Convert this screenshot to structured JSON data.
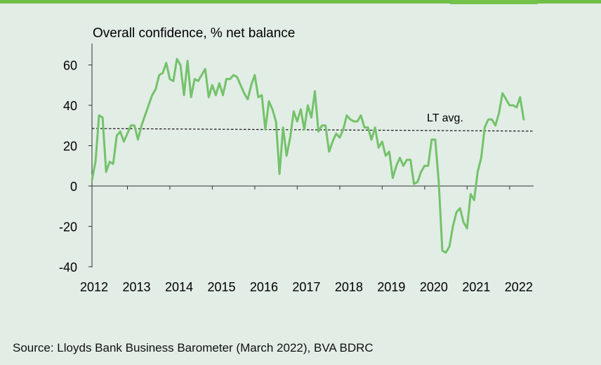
{
  "colors": {
    "background": "#e2ede6",
    "line": "#74c26a",
    "axis": "#333333",
    "lt_avg_line": "#111111",
    "top_rule": "#6fbf46"
  },
  "chart_data": {
    "type": "line",
    "title": "Overall confidence, % net balance",
    "xlabel": "",
    "ylabel": "",
    "ylim": [
      -40,
      70
    ],
    "yticks": [
      60,
      40,
      20,
      0,
      -20,
      -40
    ],
    "xlim": [
      2012.0,
      2022.4
    ],
    "xtick_labels": [
      "2012",
      "2013",
      "2014",
      "2015",
      "2016",
      "2017",
      "2018",
      "2019",
      "2020",
      "2021",
      "2022"
    ],
    "grid": false,
    "legend": "none",
    "series": [
      {
        "name": "Overall confidence",
        "x": [
          2012.0,
          2012.083,
          2012.167,
          2012.25,
          2012.333,
          2012.417,
          2012.5,
          2012.583,
          2012.667,
          2012.75,
          2012.833,
          2012.917,
          2013.0,
          2013.083,
          2013.167,
          2013.25,
          2013.333,
          2013.417,
          2013.5,
          2013.583,
          2013.667,
          2013.75,
          2013.833,
          2013.917,
          2014.0,
          2014.083,
          2014.167,
          2014.25,
          2014.333,
          2014.417,
          2014.5,
          2014.583,
          2014.667,
          2014.75,
          2014.833,
          2014.917,
          2015.0,
          2015.083,
          2015.167,
          2015.25,
          2015.333,
          2015.417,
          2015.5,
          2015.583,
          2015.667,
          2015.75,
          2015.833,
          2015.917,
          2016.0,
          2016.083,
          2016.167,
          2016.25,
          2016.333,
          2016.417,
          2016.5,
          2016.583,
          2016.667,
          2016.75,
          2016.833,
          2016.917,
          2017.0,
          2017.083,
          2017.167,
          2017.25,
          2017.333,
          2017.417,
          2017.5,
          2017.583,
          2017.667,
          2017.75,
          2017.833,
          2017.917,
          2018.0,
          2018.083,
          2018.167,
          2018.25,
          2018.333,
          2018.417,
          2018.5,
          2018.583,
          2018.667,
          2018.75,
          2018.833,
          2018.917,
          2019.0,
          2019.083,
          2019.167,
          2019.25,
          2019.333,
          2019.417,
          2019.5,
          2019.583,
          2019.667,
          2019.75,
          2019.833,
          2019.917,
          2020.0,
          2020.083,
          2020.167,
          2020.25,
          2020.333,
          2020.417,
          2020.5,
          2020.583,
          2020.667,
          2020.75,
          2020.833,
          2020.917,
          2021.0,
          2021.083,
          2021.167,
          2021.25,
          2021.333,
          2021.417,
          2021.5,
          2021.583,
          2021.667,
          2021.75,
          2021.833,
          2021.917,
          2022.0,
          2022.083,
          2022.167
        ],
        "values": [
          3,
          12,
          35,
          34,
          7,
          12,
          11,
          25,
          27,
          22,
          26,
          30,
          30,
          23,
          30,
          35,
          40,
          45,
          48,
          55,
          56,
          61,
          53,
          52,
          63,
          60,
          45,
          62,
          44,
          53,
          52,
          55,
          58,
          44,
          50,
          45,
          51,
          45,
          53,
          53,
          55,
          54,
          50,
          46,
          43,
          50,
          55,
          44,
          45,
          28,
          42,
          38,
          32,
          6,
          29,
          15,
          24,
          37,
          32,
          38,
          28,
          40,
          34,
          47,
          27,
          30,
          30,
          17,
          22,
          26,
          24,
          28,
          35,
          33,
          32,
          32,
          35,
          29,
          29,
          23,
          29,
          19,
          22,
          15,
          17,
          4,
          10,
          14,
          10,
          13,
          13,
          1,
          2,
          7,
          10,
          10,
          23,
          23,
          2,
          -32,
          -33,
          -30,
          -20,
          -13,
          -11,
          -18,
          -21,
          -4,
          -7,
          7,
          14,
          29,
          33,
          33,
          30,
          36,
          46,
          43,
          40,
          40,
          39,
          44,
          33
        ]
      }
    ],
    "reference_lines": [
      {
        "label": "LT avg.",
        "y_start": 28.5,
        "y_end": 27.2
      }
    ]
  },
  "source": "Source: Lloyds Bank Business Barometer (March 2022), BVA BDRC"
}
